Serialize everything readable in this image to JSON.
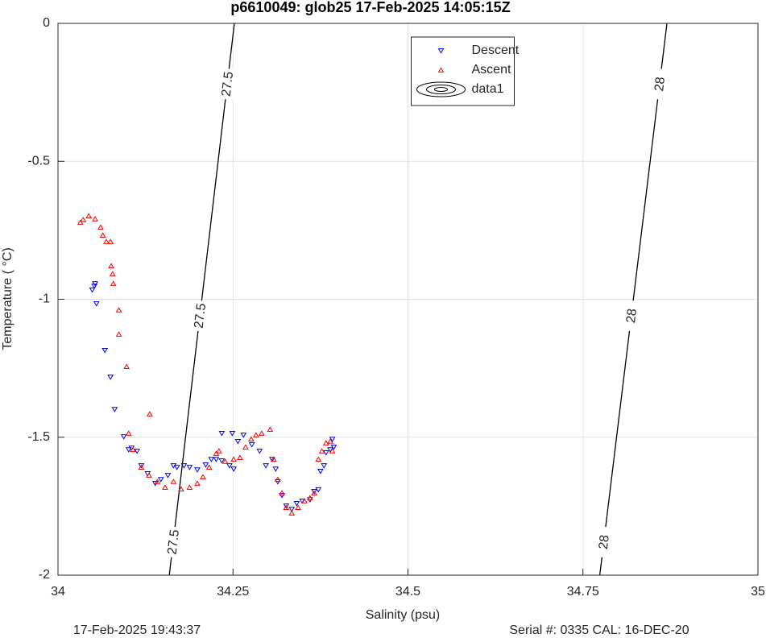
{
  "chart_data": {
    "type": "scatter",
    "title": "p6610049: glob25 17-Feb-2025 14:05:15Z",
    "x_label": "Salinity (psu)",
    "y_label": "Temperature (   °C)",
    "footer_left": "17-Feb-2025 19:43:37",
    "footer_right": "Serial #: 0335  CAL: 16-DEC-20",
    "xlim": [
      34,
      35
    ],
    "xticks": [
      34,
      34.25,
      34.5,
      34.75,
      35
    ],
    "ylim": [
      -2,
      0
    ],
    "yticks": [
      -2,
      -1.5,
      -1,
      -0.5,
      0
    ],
    "grid": true,
    "legend": "north",
    "contour_name": "data1",
    "contours": [
      {
        "level": 27.5,
        "x": [
          34.252,
          34.159
        ],
        "y": [
          0,
          -2
        ]
      },
      {
        "level": 28,
        "x": [
          34.87,
          34.774
        ],
        "y": [
          0,
          -2
        ]
      }
    ],
    "series": [
      {
        "name": "Descent",
        "color": "#0000ff",
        "marker": "down",
        "x": [
          34.049,
          34.052,
          34.053,
          34.055,
          34.067,
          34.075,
          34.081,
          34.094,
          34.101,
          34.105,
          34.113,
          34.119,
          34.128,
          34.139,
          34.147,
          34.157,
          34.165,
          34.17,
          34.18,
          34.188,
          34.199,
          34.211,
          34.219,
          34.226,
          34.234,
          34.245,
          34.251,
          34.234,
          34.249,
          34.257,
          34.265,
          34.277,
          34.288,
          34.297,
          34.306,
          34.311,
          34.314,
          34.32,
          34.326,
          34.334,
          34.341,
          34.349,
          34.36,
          34.366,
          34.372,
          34.375,
          34.38,
          34.383,
          34.389,
          34.394,
          34.392
        ],
        "values": [
          -0.966,
          -0.952,
          -0.943,
          -1.016,
          -1.185,
          -1.282,
          -1.399,
          -1.498,
          -1.545,
          -1.539,
          -1.55,
          -1.603,
          -1.632,
          -1.667,
          -1.653,
          -1.638,
          -1.603,
          -1.609,
          -1.603,
          -1.609,
          -1.618,
          -1.6,
          -1.58,
          -1.58,
          -1.585,
          -1.603,
          -1.615,
          -1.486,
          -1.486,
          -1.515,
          -1.492,
          -1.527,
          -1.55,
          -1.603,
          -1.58,
          -1.615,
          -1.661,
          -1.711,
          -1.749,
          -1.761,
          -1.74,
          -1.731,
          -1.726,
          -1.696,
          -1.69,
          -1.623,
          -1.603,
          -1.556,
          -1.545,
          -1.536,
          -1.507
        ]
      },
      {
        "name": "Ascent",
        "color": "#ff0000",
        "marker": "up",
        "x": [
          34.032,
          34.036,
          34.044,
          34.053,
          34.061,
          34.064,
          34.069,
          34.075,
          34.076,
          34.078,
          34.079,
          34.087,
          34.087,
          34.098,
          34.101,
          34.107,
          34.119,
          34.13,
          34.142,
          34.153,
          34.165,
          34.176,
          34.188,
          34.199,
          34.207,
          34.216,
          34.226,
          34.23,
          34.239,
          34.251,
          34.26,
          34.268,
          34.276,
          34.283,
          34.291,
          34.303,
          34.308,
          34.314,
          34.32,
          34.326,
          34.334,
          34.343,
          34.352,
          34.36,
          34.366,
          34.372,
          34.377,
          34.383,
          34.389,
          34.392,
          34.131
        ],
        "values": [
          -0.721,
          -0.712,
          -0.698,
          -0.709,
          -0.739,
          -0.768,
          -0.791,
          -0.791,
          -0.879,
          -0.908,
          -0.943,
          -1.039,
          -1.127,
          -1.244,
          -1.486,
          -1.545,
          -1.609,
          -1.638,
          -1.661,
          -1.682,
          -1.661,
          -1.688,
          -1.682,
          -1.667,
          -1.644,
          -1.609,
          -1.559,
          -1.55,
          -1.588,
          -1.58,
          -1.574,
          -1.536,
          -1.507,
          -1.492,
          -1.486,
          -1.472,
          -1.58,
          -1.653,
          -1.702,
          -1.755,
          -1.775,
          -1.755,
          -1.731,
          -1.72,
          -1.702,
          -1.58,
          -1.55,
          -1.521,
          -1.515,
          -1.55,
          -1.416
        ]
      }
    ]
  }
}
